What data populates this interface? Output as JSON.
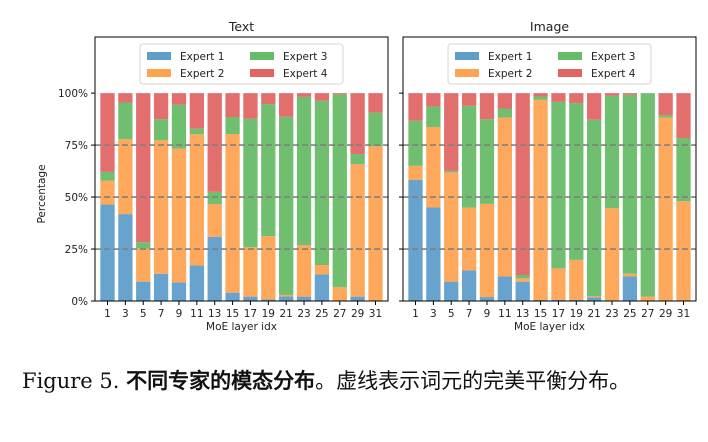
{
  "chart_data": [
    {
      "type": "bar",
      "stacked": true,
      "title": "Text",
      "xlabel": "MoE layer idx",
      "ylabel": "Percentage",
      "ylim": [
        0,
        127
      ],
      "yticks": [
        "0%",
        "25%",
        "50%",
        "75%",
        "100%"
      ],
      "ytick_values": [
        0,
        25,
        50,
        75,
        100
      ],
      "dashed_lines": [
        25,
        50,
        75
      ],
      "legend_placement": "top-center",
      "categories": [
        "1",
        "3",
        "5",
        "7",
        "9",
        "11",
        "13",
        "15",
        "17",
        "19",
        "21",
        "23",
        "25",
        "27",
        "29",
        "31"
      ],
      "series": [
        {
          "name": "Expert 1",
          "color": "#5f9ec9",
          "values": [
            46.4,
            41.8,
            9.3,
            13.1,
            9.0,
            17.1,
            30.9,
            4.0,
            2.1,
            0.8,
            2.2,
            2.1,
            12.8,
            0,
            2.1,
            0
          ]
        },
        {
          "name": "Expert 2",
          "color": "#fda352",
          "values": [
            11.5,
            36.0,
            16.0,
            64.2,
            64.3,
            63.1,
            15.7,
            76.3,
            23.8,
            30.4,
            0.7,
            24.8,
            4.5,
            6.6,
            63.7,
            74.4
          ]
        },
        {
          "name": "Expert 3",
          "color": "#68bb68",
          "values": [
            4.2,
            17.7,
            3.0,
            10.2,
            21.1,
            2.7,
            5.9,
            8.2,
            61.8,
            63.5,
            85.7,
            71.3,
            79.0,
            92.8,
            4.9,
            16.2
          ]
        },
        {
          "name": "Expert 4",
          "color": "#e06666",
          "values": [
            37.9,
            4.5,
            71.7,
            12.5,
            5.6,
            17.1,
            47.5,
            11.5,
            12.3,
            5.3,
            11.4,
            1.8,
            3.7,
            0.6,
            29.3,
            9.4
          ]
        }
      ]
    },
    {
      "type": "bar",
      "stacked": true,
      "title": "Image",
      "xlabel": "MoE layer idx",
      "ylabel": "",
      "ylim": [
        0,
        127
      ],
      "dashed_lines": [
        25,
        50,
        75
      ],
      "legend_placement": "top-center",
      "categories": [
        "1",
        "3",
        "5",
        "7",
        "9",
        "11",
        "13",
        "15",
        "17",
        "19",
        "21",
        "23",
        "25",
        "27",
        "29",
        "31"
      ],
      "series": [
        {
          "name": "Expert 1",
          "color": "#5f9ec9",
          "values": [
            58.2,
            45.0,
            9.3,
            14.7,
            1.9,
            11.8,
            9.3,
            0.5,
            0.6,
            0.6,
            1.8,
            0.3,
            11.8,
            0,
            0,
            0
          ]
        },
        {
          "name": "Expert 2",
          "color": "#fda352",
          "values": [
            6.8,
            38.7,
            52.6,
            30.3,
            44.8,
            76.5,
            1.6,
            96.3,
            15.1,
            19.2,
            0.6,
            44.3,
            1.3,
            2.1,
            88.2,
            48.0
          ]
        },
        {
          "name": "Expert 3",
          "color": "#68bb68",
          "values": [
            21.7,
            9.9,
            0.7,
            48.9,
            40.8,
            4.3,
            1.6,
            1.6,
            80.1,
            75.4,
            84.8,
            54.1,
            86.1,
            97.9,
            1.1,
            30.4
          ]
        },
        {
          "name": "Expert 4",
          "color": "#e06666",
          "values": [
            13.3,
            6.4,
            37.4,
            6.1,
            12.5,
            7.4,
            87.5,
            1.6,
            4.2,
            4.8,
            12.8,
            1.3,
            0.8,
            0,
            10.7,
            21.6
          ]
        }
      ]
    }
  ],
  "caption": {
    "label": "Figure 5.",
    "bold": "不同专家的模态分布",
    "text": "。虚线表示词元的完美平衡分布。"
  }
}
